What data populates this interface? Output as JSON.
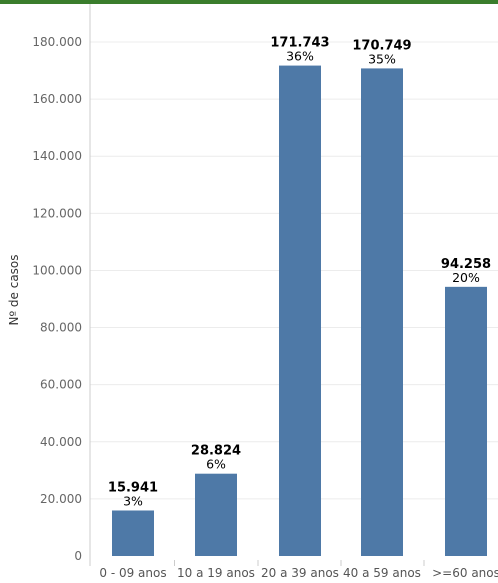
{
  "colors": {
    "top_rule": "#3a7d2c",
    "bar": "#4e79a7",
    "grid": "#ececec",
    "axis": "#cccccc"
  },
  "chart_data": {
    "type": "bar",
    "categories": [
      "0 - 09 anos",
      "10 a 19 anos",
      "20 a 39 anos",
      "40 a 59 anos",
      ">=60 anos"
    ],
    "values": [
      15941,
      28824,
      171743,
      170749,
      94258
    ],
    "value_labels": [
      "15.941",
      "28.824",
      "171.743",
      "170.749",
      "94.258"
    ],
    "percent_labels": [
      "3%",
      "6%",
      "36%",
      "35%",
      "20%"
    ],
    "ylabel": "Nº de casos",
    "xlabel": "",
    "ylim": [
      0,
      180000
    ],
    "yticks": [
      0,
      20000,
      40000,
      60000,
      80000,
      100000,
      120000,
      140000,
      160000,
      180000
    ],
    "ytick_labels": [
      "0",
      "20.000",
      "40.000",
      "60.000",
      "80.000",
      "100.000",
      "120.000",
      "140.000",
      "160.000",
      "180.000"
    ],
    "grid": true,
    "legend": "none"
  }
}
